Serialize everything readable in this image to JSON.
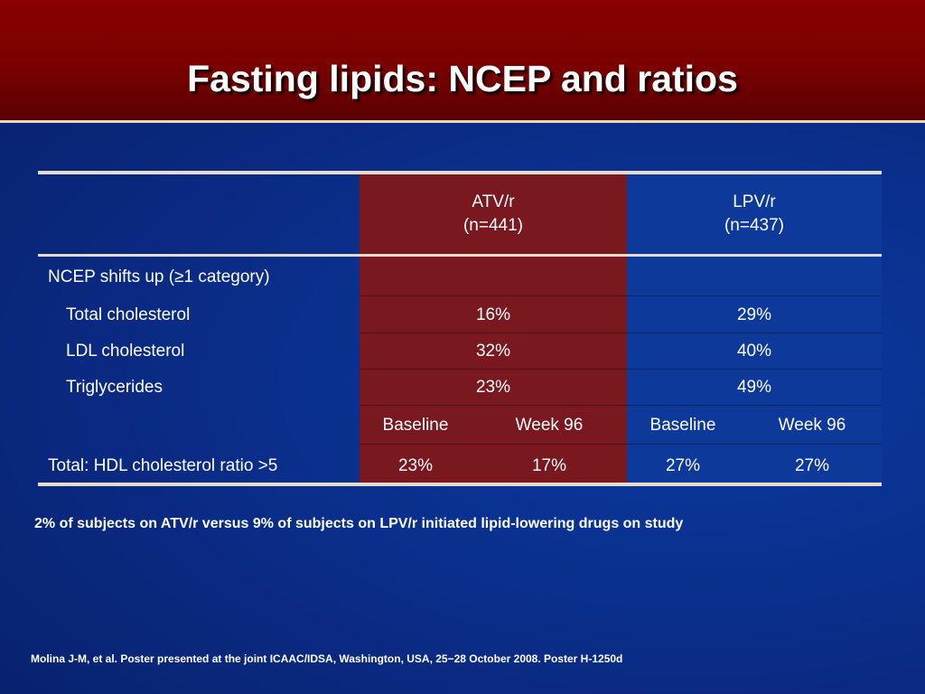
{
  "slide": {
    "title": "Fasting lipids: NCEP and ratios",
    "footnote": "2% of subjects on ATV/r versus 9% of subjects on LPV/r initiated lipid-lowering drugs on study",
    "citation": "Molina J-M, et al. Poster presented at the joint ICAAC/IDSA, Washington, USA, 25−28 October 2008. Poster H-1250d"
  },
  "table": {
    "columns": {
      "atv": {
        "name": "ATV/r",
        "n": "(n=441)"
      },
      "lpv": {
        "name": "LPV/r",
        "n": "(n=437)"
      }
    },
    "section_label": "NCEP shifts up (≥1 category)",
    "rows": [
      {
        "label": "Total cholesterol",
        "atv": "16%",
        "lpv": "29%"
      },
      {
        "label": "LDL cholesterol",
        "atv": "32%",
        "lpv": "40%"
      },
      {
        "label": "Triglycerides",
        "atv": "23%",
        "lpv": "49%"
      }
    ],
    "subheaders": {
      "baseline": "Baseline",
      "week96": "Week 96"
    },
    "ratio_row": {
      "label": "Total: HDL cholesterol ratio >5",
      "atv_baseline": "23%",
      "atv_week96": "17%",
      "lpv_baseline": "27%",
      "lpv_week96": "27%"
    }
  },
  "colors": {
    "header_red": "#7a0000",
    "atv_column": "#7a1820",
    "lpv_column": "#0d3a9a",
    "background_blue": "#0a2e8a",
    "rule": "#e6dccd"
  }
}
